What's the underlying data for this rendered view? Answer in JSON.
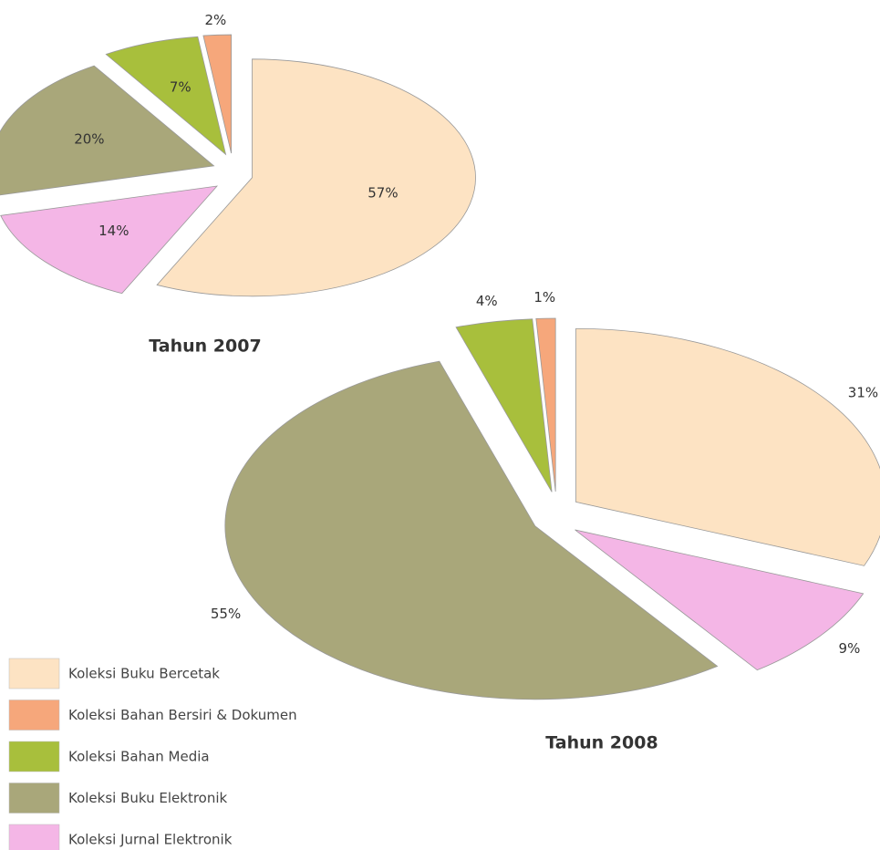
{
  "legend": {
    "categories": [
      "Koleksi Buku Bercetak",
      "Koleksi Bahan Bersiri & Dokumen",
      "Koleksi Bahan Media",
      "Koleksi Buku Elektronik",
      "Koleksi Jurnal Elektronik"
    ],
    "colors": [
      "#fde3c3",
      "#f6a77b",
      "#a8bf3c",
      "#a9a77a",
      "#f4b6e6"
    ]
  },
  "chart_data": [
    {
      "type": "pie",
      "title": "Tahun 2007",
      "values": [
        57,
        2,
        7,
        20,
        14
      ],
      "value_labels": [
        "57%",
        "2%",
        "7%",
        "20%",
        "14%"
      ]
    },
    {
      "type": "pie",
      "title": "Tahun 2008",
      "values": [
        31,
        1,
        4,
        55,
        9
      ],
      "value_labels": [
        "31%",
        "1%",
        "4%",
        "55%",
        "9%"
      ]
    }
  ]
}
